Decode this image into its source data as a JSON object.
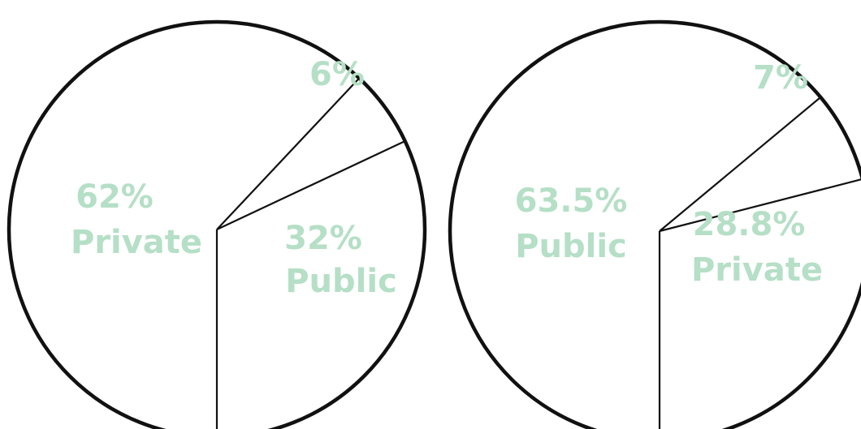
{
  "chart_data": [
    {
      "type": "pie",
      "slices": [
        {
          "label": "Public",
          "value": 32,
          "value_text": "32%"
        },
        {
          "label": "",
          "value": 6,
          "value_text": "6%"
        },
        {
          "label": "Private",
          "value": 62,
          "value_text": "62%"
        }
      ]
    },
    {
      "type": "pie",
      "slices": [
        {
          "label": "Private",
          "value": 28.8,
          "value_text": "28.8%"
        },
        {
          "label": "",
          "value": 7,
          "value_text": "7%"
        },
        {
          "label": "Public",
          "value": 63.5,
          "value_text": "63.5%"
        }
      ]
    }
  ],
  "colors": {
    "label_text": "#b5dfc6",
    "outline": "#111111",
    "fill": "#ffffff"
  }
}
